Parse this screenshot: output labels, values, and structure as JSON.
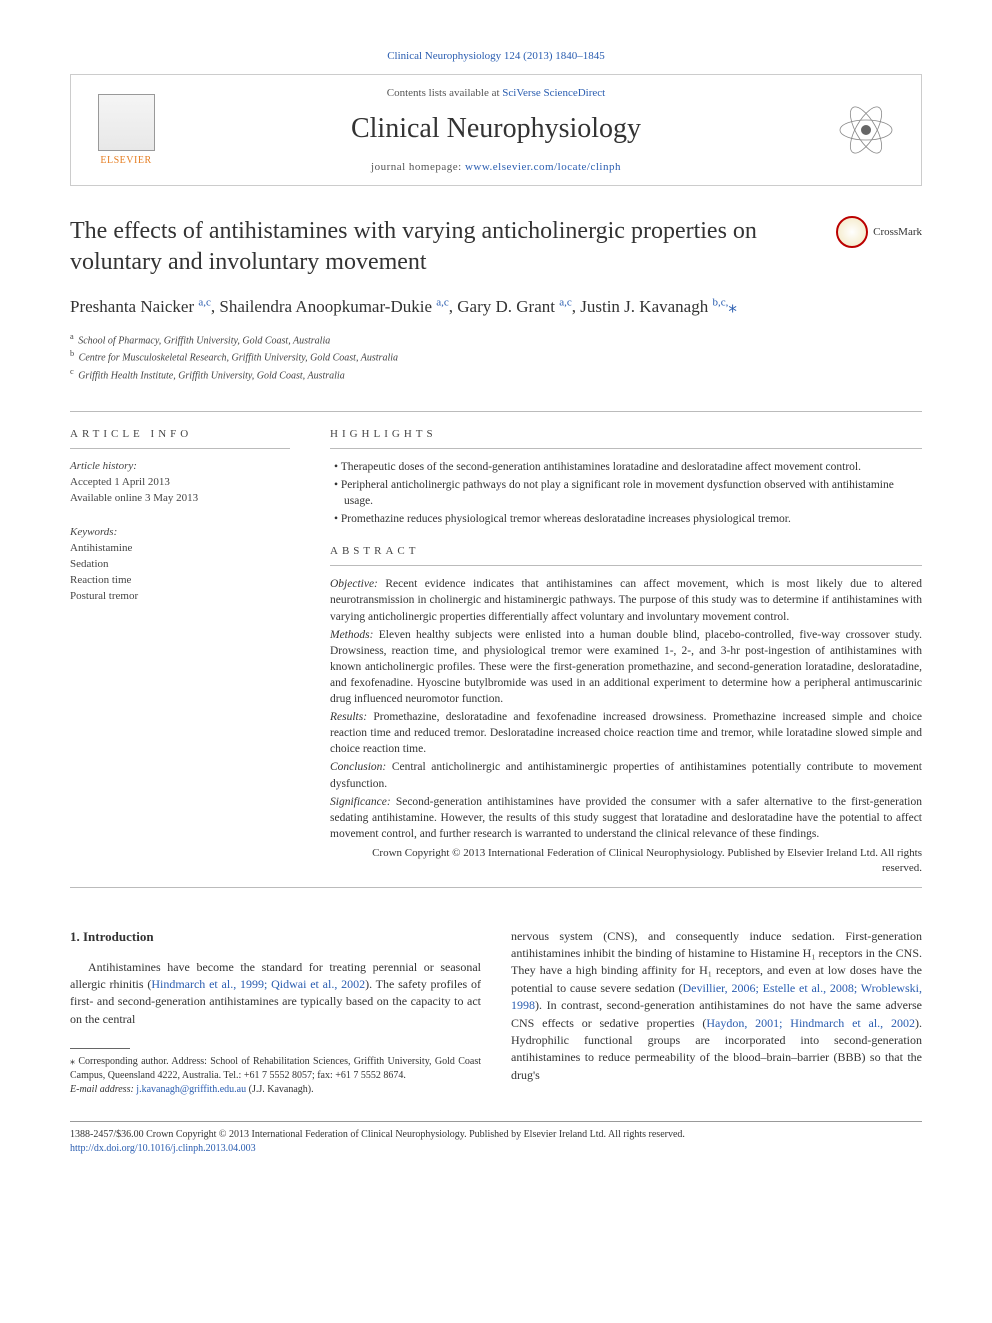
{
  "journal_ref": {
    "text": "Clinical Neurophysiology 124 (2013) 1840–1845",
    "link_text": "Clinical Neurophysiology"
  },
  "header": {
    "contents_prefix": "Contents lists available at ",
    "contents_link": "SciVerse ScienceDirect",
    "journal_name": "Clinical Neurophysiology",
    "homepage_prefix": "journal homepage: ",
    "homepage_link": "www.elsevier.com/locate/clinph",
    "elsevier_label": "ELSEVIER"
  },
  "title": "The effects of antihistamines with varying anticholinergic properties on voluntary and involuntary movement",
  "crossmark_label": "CrossMark",
  "authors_html": "Preshanta Naicker <sup>a,c</sup>, Shailendra Anoopkumar-Dukie <sup>a,c</sup>, Gary D. Grant <sup>a,c</sup>, Justin J. Kavanagh <sup>b,c,</sup>",
  "corresponding_marker": "⁎",
  "affiliations": [
    {
      "sup": "a",
      "text": "School of Pharmacy, Griffith University, Gold Coast, Australia"
    },
    {
      "sup": "b",
      "text": "Centre for Musculoskeletal Research, Griffith University, Gold Coast, Australia"
    },
    {
      "sup": "c",
      "text": "Griffith Health Institute, Griffith University, Gold Coast, Australia"
    }
  ],
  "article_info": {
    "heading": "ARTICLE INFO",
    "history_label": "Article history:",
    "accepted": "Accepted 1 April 2013",
    "online": "Available online 3 May 2013",
    "keywords_label": "Keywords:",
    "keywords": [
      "Antihistamine",
      "Sedation",
      "Reaction time",
      "Postural tremor"
    ]
  },
  "highlights": {
    "heading": "HIGHLIGHTS",
    "items": [
      "Therapeutic doses of the second-generation antihistamines loratadine and desloratadine affect movement control.",
      "Peripheral anticholinergic pathways do not play a significant role in movement dysfunction observed with antihistamine usage.",
      "Promethazine reduces physiological tremor whereas desloratadine increases physiological tremor."
    ]
  },
  "abstract": {
    "heading": "ABSTRACT",
    "sections": [
      {
        "label": "Objective:",
        "text": "Recent evidence indicates that antihistamines can affect movement, which is most likely due to altered neurotransmission in cholinergic and histaminergic pathways. The purpose of this study was to determine if antihistamines with varying anticholinergic properties differentially affect voluntary and involuntary movement control."
      },
      {
        "label": "Methods:",
        "text": "Eleven healthy subjects were enlisted into a human double blind, placebo-controlled, five-way crossover study. Drowsiness, reaction time, and physiological tremor were examined 1-, 2-, and 3-hr post-ingestion of antihistamines with known anticholinergic profiles. These were the first-generation promethazine, and second-generation loratadine, desloratadine, and fexofenadine. Hyoscine butylbromide was used in an additional experiment to determine how a peripheral antimuscarinic drug influenced neuromotor function."
      },
      {
        "label": "Results:",
        "text": "Promethazine, desloratadine and fexofenadine increased drowsiness. Promethazine increased simple and choice reaction time and reduced tremor. Desloratadine increased choice reaction time and tremor, while loratadine slowed simple and choice reaction time."
      },
      {
        "label": "Conclusion:",
        "text": "Central anticholinergic and antihistaminergic properties of antihistamines potentially contribute to movement dysfunction."
      },
      {
        "label": "Significance:",
        "text": "Second-generation antihistamines have provided the consumer with a safer alternative to the first-generation sedating antihistamine. However, the results of this study suggest that loratadine and desloratadine have the potential to affect movement control, and further research is warranted to understand the clinical relevance of these findings."
      }
    ],
    "copyright": "Crown Copyright © 2013 International Federation of Clinical Neurophysiology. Published by Elsevier Ireland Ltd. All rights reserved."
  },
  "body": {
    "intro_heading": "1. Introduction",
    "left_para": "Antihistamines have become the standard for treating perennial or seasonal allergic rhinitis (",
    "left_ref1": "Hindmarch et al., 1999; Qidwai et al., 2002",
    "left_para_cont": "). The safety profiles of first- and second-generation antihistamines are typically based on the capacity to act on the central",
    "right_para_a": "nervous system (CNS), and consequently induce sedation. First-generation antihistamines inhibit the binding of histamine to Histamine H₁ receptors in the CNS. They have a high binding affinity for H₁ receptors, and even at low doses have the potential to cause severe sedation (",
    "right_ref1": "Devillier, 2006; Estelle et al., 2008; Wroblewski, 1998",
    "right_para_b": "). In contrast, second-generation antihistamines do not have the same adverse CNS effects or sedative properties (",
    "right_ref2": "Haydon, 2001; Hindmarch et al., 2002",
    "right_para_c": "). Hydrophilic functional groups are incorporated into second-generation antihistamines to reduce permeability of the blood–brain–barrier (BBB) so that the drug's"
  },
  "footnote": {
    "corr_label": "⁎ Corresponding author. Address: School of Rehabilitation Sciences, Griffith University, Gold Coast Campus, Queensland 4222, Australia. Tel.: +61 7 5552 8057; fax: +61 7 5552 8674.",
    "email_label": "E-mail address:",
    "email": "j.kavanagh@griffith.edu.au",
    "email_suffix": "(J.J. Kavanagh)."
  },
  "footer": {
    "line1": "1388-2457/$36.00 Crown Copyright © 2013 International Federation of Clinical Neurophysiology. Published by Elsevier Ireland Ltd. All rights reserved.",
    "doi": "http://dx.doi.org/10.1016/j.clinph.2013.04.003"
  },
  "colors": {
    "link": "#2a5db0",
    "text": "#3a3a3a",
    "rule": "#bbbbbb",
    "elsevier_orange": "#e67e22"
  }
}
